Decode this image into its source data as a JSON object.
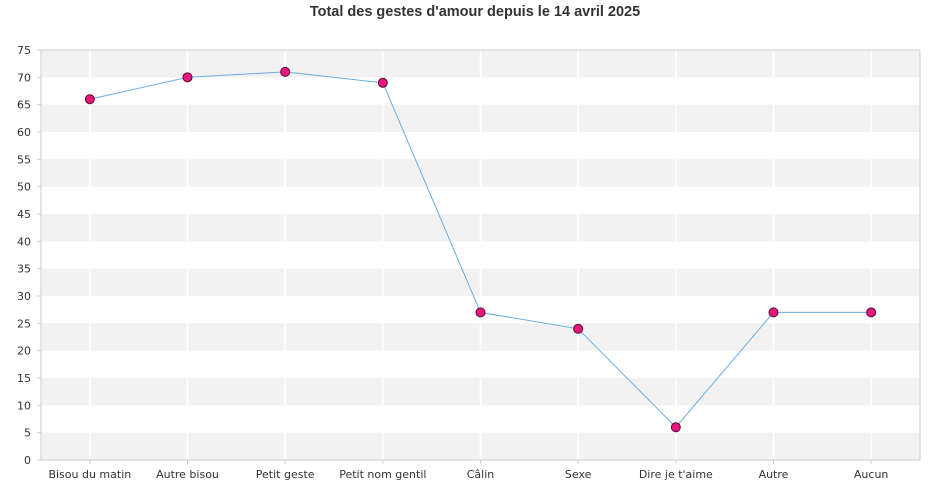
{
  "chart_data": {
    "type": "line",
    "title": "Total des gestes d'amour depuis le 14 avril 2025",
    "xlabel": "",
    "ylabel": "",
    "categories": [
      "Bisou du matin",
      "Autre bisou",
      "Petit geste",
      "Petit nom gentil",
      "Câlin",
      "Sexe",
      "Dire je t'aime",
      "Autre",
      "Aucun"
    ],
    "series": [
      {
        "values": [
          66,
          70,
          71,
          69,
          27,
          24,
          6,
          27,
          27
        ]
      }
    ],
    "ylim": [
      0,
      75
    ],
    "yticks": [
      0,
      5,
      10,
      15,
      20,
      25,
      30,
      35,
      40,
      45,
      50,
      55,
      60,
      65,
      70,
      75
    ],
    "grid": true,
    "legend": "none",
    "colors": {
      "line": "#6aaee8",
      "marker_fill": "#e8167f",
      "marker_stroke": "#5a0a30",
      "band": "#f2f2f2",
      "axis": "#cccccc"
    }
  }
}
